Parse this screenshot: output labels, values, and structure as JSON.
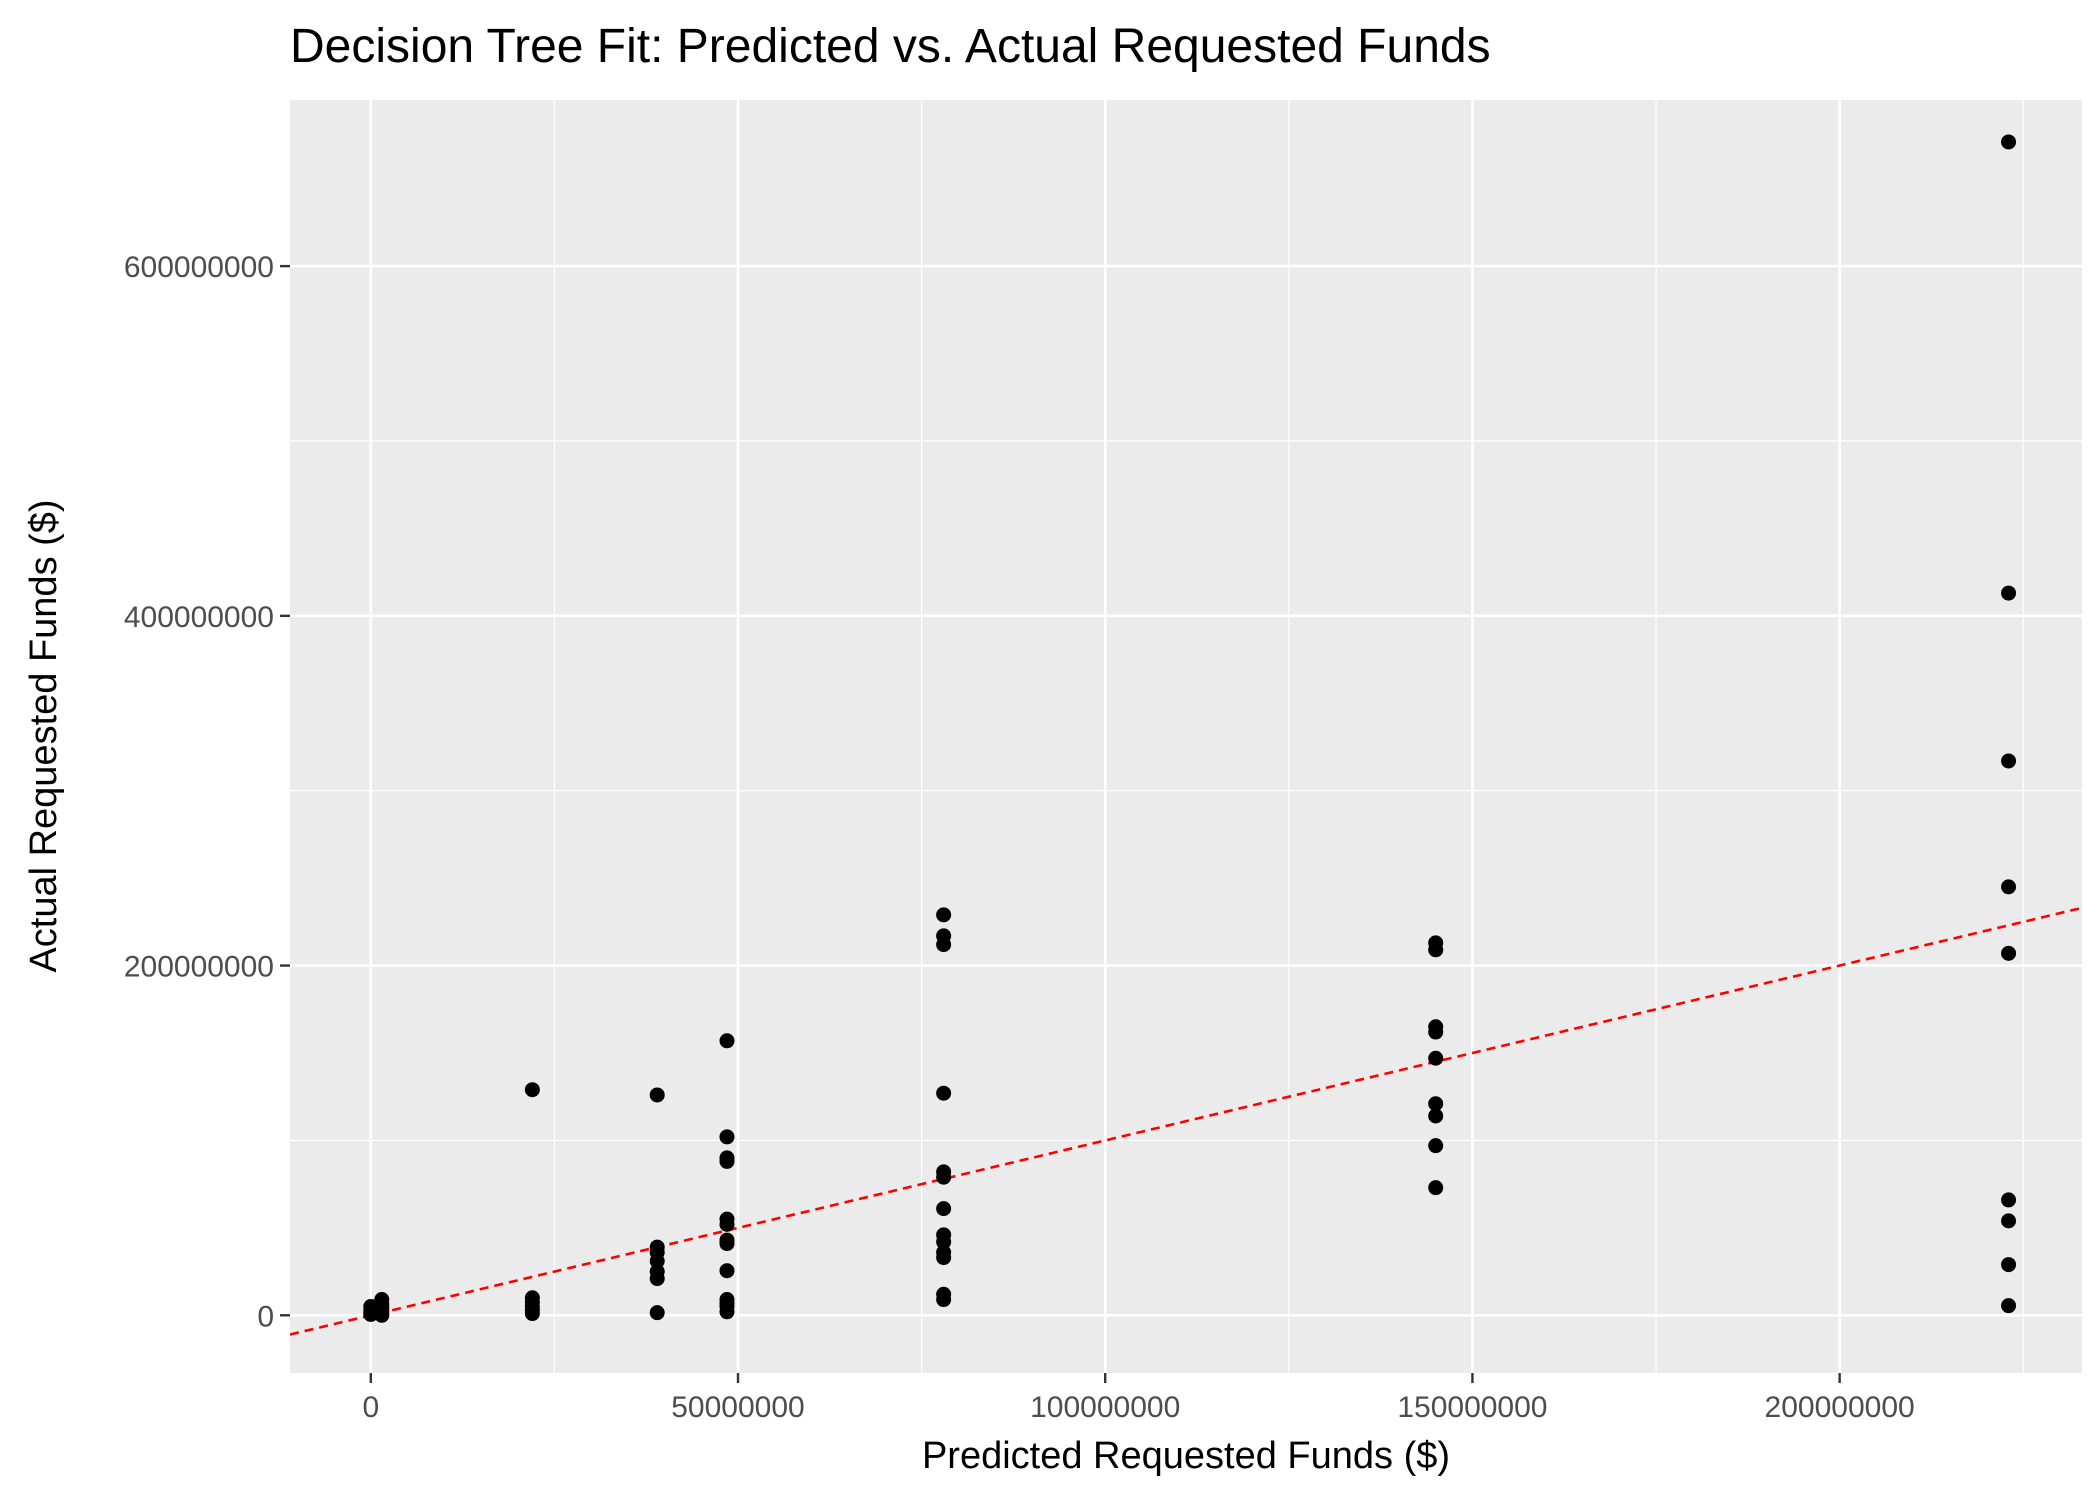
{
  "chart_data": {
    "type": "scatter",
    "title": "Decision Tree Fit: Predicted vs. Actual Requested Funds",
    "xlabel": "Predicted Requested Funds ($)",
    "ylabel": "Actual Requested Funds ($)",
    "xlim": [
      -11000000,
      233000000
    ],
    "ylim": [
      -33000000,
      695000000
    ],
    "x_ticks": [
      {
        "value": 0,
        "label": "0"
      },
      {
        "value": 50000000,
        "label": "50000000"
      },
      {
        "value": 100000000,
        "label": "100000000"
      },
      {
        "value": 150000000,
        "label": "150000000"
      },
      {
        "value": 200000000,
        "label": "200000000"
      }
    ],
    "y_ticks": [
      {
        "value": 0,
        "label": "0"
      },
      {
        "value": 200000000,
        "label": "200000000"
      },
      {
        "value": 400000000,
        "label": "400000000"
      },
      {
        "value": 600000000,
        "label": "600000000"
      }
    ],
    "grid": true,
    "legend": "none",
    "colors": {
      "panel": "#ebebeb",
      "grid": "#ffffff",
      "points": "#000000",
      "reference_line": "#ff0000"
    },
    "reference_line": {
      "style": "dashed",
      "slope": 1,
      "intercept": 0
    },
    "points": [
      {
        "x": 0,
        "y": 500000
      },
      {
        "x": 0,
        "y": 1500000
      },
      {
        "x": 0,
        "y": 3000000
      },
      {
        "x": 0,
        "y": 5000000
      },
      {
        "x": 1500000,
        "y": 0
      },
      {
        "x": 1500000,
        "y": 2000000
      },
      {
        "x": 1500000,
        "y": 4000000
      },
      {
        "x": 1500000,
        "y": 6000000
      },
      {
        "x": 1500000,
        "y": 9000000
      },
      {
        "x": 22000000,
        "y": 1000000
      },
      {
        "x": 22000000,
        "y": 3000000
      },
      {
        "x": 22000000,
        "y": 5000000
      },
      {
        "x": 22000000,
        "y": 7500000
      },
      {
        "x": 22000000,
        "y": 10000000
      },
      {
        "x": 22000000,
        "y": 129000000
      },
      {
        "x": 39000000,
        "y": 1500000
      },
      {
        "x": 39000000,
        "y": 21000000
      },
      {
        "x": 39000000,
        "y": 25000000
      },
      {
        "x": 39000000,
        "y": 31000000
      },
      {
        "x": 39000000,
        "y": 36000000
      },
      {
        "x": 39000000,
        "y": 39000000
      },
      {
        "x": 39000000,
        "y": 126000000
      },
      {
        "x": 48500000,
        "y": 2000000
      },
      {
        "x": 48500000,
        "y": 5000000
      },
      {
        "x": 48500000,
        "y": 7000000
      },
      {
        "x": 48500000,
        "y": 9000000
      },
      {
        "x": 48500000,
        "y": 25500000
      },
      {
        "x": 48500000,
        "y": 41000000
      },
      {
        "x": 48500000,
        "y": 43000000
      },
      {
        "x": 48500000,
        "y": 52000000
      },
      {
        "x": 48500000,
        "y": 55000000
      },
      {
        "x": 48500000,
        "y": 88000000
      },
      {
        "x": 48500000,
        "y": 90000000
      },
      {
        "x": 48500000,
        "y": 102000000
      },
      {
        "x": 48500000,
        "y": 157000000
      },
      {
        "x": 78000000,
        "y": 9000000
      },
      {
        "x": 78000000,
        "y": 12000000
      },
      {
        "x": 78000000,
        "y": 33000000
      },
      {
        "x": 78000000,
        "y": 36000000
      },
      {
        "x": 78000000,
        "y": 42000000
      },
      {
        "x": 78000000,
        "y": 46000000
      },
      {
        "x": 78000000,
        "y": 61000000
      },
      {
        "x": 78000000,
        "y": 79000000
      },
      {
        "x": 78000000,
        "y": 82000000
      },
      {
        "x": 78000000,
        "y": 127000000
      },
      {
        "x": 78000000,
        "y": 212000000
      },
      {
        "x": 78000000,
        "y": 217000000
      },
      {
        "x": 78000000,
        "y": 229000000
      },
      {
        "x": 145000000,
        "y": 73000000
      },
      {
        "x": 145000000,
        "y": 97000000
      },
      {
        "x": 145000000,
        "y": 114000000
      },
      {
        "x": 145000000,
        "y": 121000000
      },
      {
        "x": 145000000,
        "y": 147000000
      },
      {
        "x": 145000000,
        "y": 162000000
      },
      {
        "x": 145000000,
        "y": 165000000
      },
      {
        "x": 145000000,
        "y": 209000000
      },
      {
        "x": 145000000,
        "y": 213000000
      },
      {
        "x": 223000000,
        "y": 5500000
      },
      {
        "x": 223000000,
        "y": 29000000
      },
      {
        "x": 223000000,
        "y": 54000000
      },
      {
        "x": 223000000,
        "y": 66000000
      },
      {
        "x": 223000000,
        "y": 207000000
      },
      {
        "x": 223000000,
        "y": 245000000
      },
      {
        "x": 223000000,
        "y": 317000000
      },
      {
        "x": 223000000,
        "y": 413000000
      },
      {
        "x": 223000000,
        "y": 671000000
      }
    ]
  }
}
